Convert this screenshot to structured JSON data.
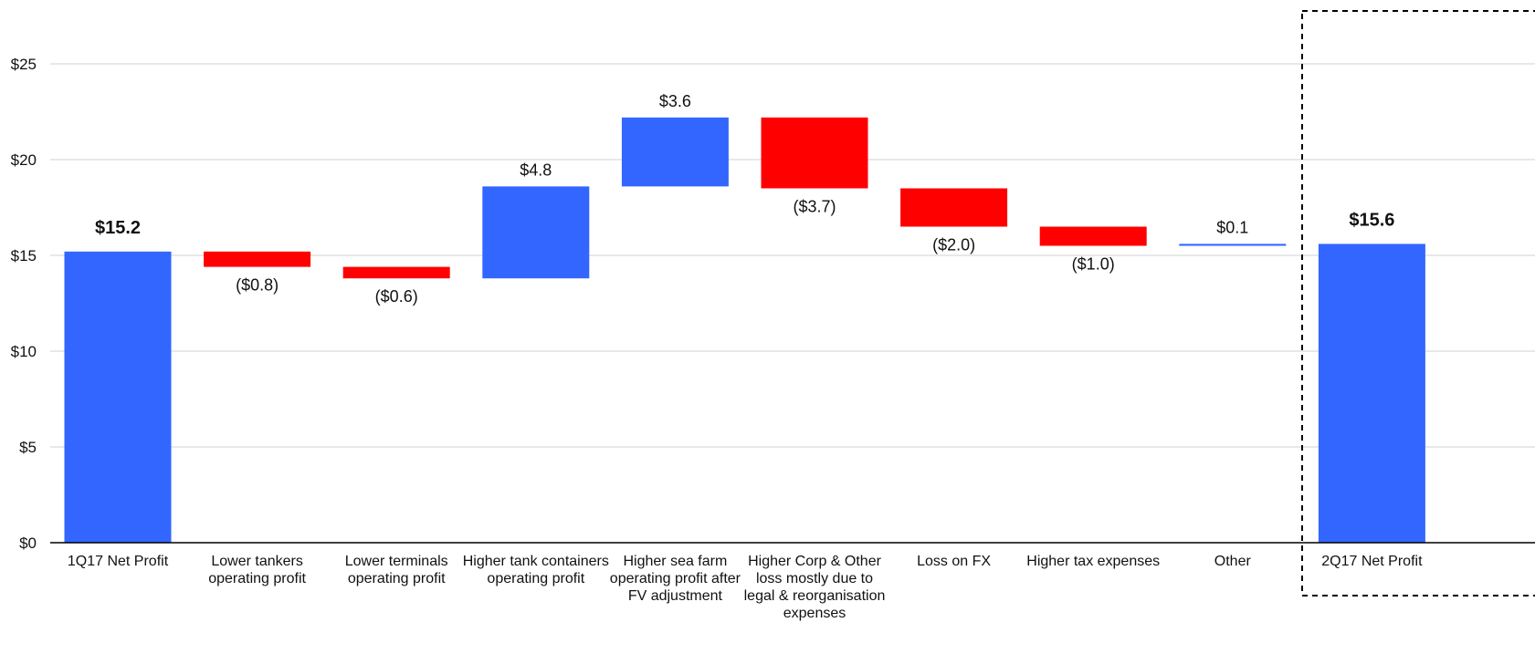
{
  "chart_data": {
    "type": "bar",
    "subtype": "waterfall",
    "title": "",
    "xlabel": "",
    "ylabel": "",
    "ylim": [
      0,
      27
    ],
    "y_ticks": [
      "$0",
      "$5",
      "$10",
      "$15",
      "$20",
      "$25"
    ],
    "y_tick_values": [
      0,
      5,
      10,
      15,
      20,
      25
    ],
    "grid": true,
    "categories": [
      "1Q17 Net Profit",
      "Lower tankers operating profit",
      "Lower terminals operating profit",
      "Higher tank containers operating profit",
      "Higher sea farm operating profit after FV adjustment",
      "Higher Corp & Other loss mostly due to legal & reorganisation expenses",
      "Loss on FX",
      "Higher tax expenses",
      "Other",
      "2Q17 Net Profit"
    ],
    "category_lines": [
      [
        "1Q17 Net Profit"
      ],
      [
        "Lower tankers",
        "operating profit"
      ],
      [
        "Lower terminals",
        "operating profit"
      ],
      [
        "Higher tank containers",
        "operating profit"
      ],
      [
        "Higher sea farm",
        "operating profit after",
        "FV adjustment"
      ],
      [
        "Higher Corp & Other",
        "loss mostly due to",
        "legal & reorganisation",
        "expenses"
      ],
      [
        "Loss on FX"
      ],
      [
        "Higher tax expenses"
      ],
      [
        "Other"
      ],
      [
        "2Q17 Net Profit"
      ]
    ],
    "values": [
      15.2,
      -0.8,
      -0.6,
      4.8,
      3.6,
      -3.7,
      -2.0,
      -1.0,
      0.1,
      15.6
    ],
    "bar_kind": [
      "total",
      "delta",
      "delta",
      "delta",
      "delta",
      "delta",
      "delta",
      "delta",
      "delta",
      "total"
    ],
    "data_labels": [
      "$15.2",
      "($0.8)",
      "($0.6)",
      "$4.8",
      "$3.6",
      "($3.7)",
      "($2.0)",
      "($1.0)",
      "$0.1",
      "$15.6"
    ],
    "highlighted_category": "2Q17 Net Profit",
    "colors": {
      "total": "#3366ff",
      "increase": "#3366ff",
      "decrease": "#ff0000",
      "grid": "#d9d9d9",
      "axis": "#000000"
    }
  }
}
